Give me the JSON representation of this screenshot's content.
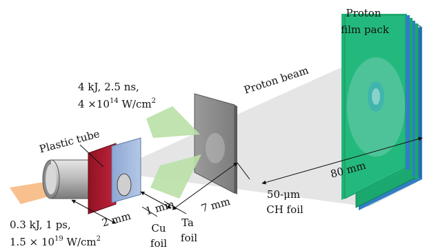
{
  "labels": {
    "proton_film_pack_line1": "Proton",
    "proton_film_pack_line2": "film pack",
    "proton_beam": "Proton beam",
    "long_pulse_line1": "4 kJ, 2.5 ns,",
    "long_pulse_line2_prefix": "4 ×10",
    "long_pulse_line2_exp": "14",
    "long_pulse_line2_unit": " W/cm",
    "long_pulse_line2_unit_exp": "2",
    "plastic_tube": "Plastic tube",
    "short_pulse_line1": "0.3 kJ, 1 ps,",
    "short_pulse_line2_prefix": "1.5 × 10",
    "short_pulse_line2_exp": "19",
    "short_pulse_line2_unit": " W/cm",
    "short_pulse_line2_unit_exp": "2",
    "dim_2mm": "2 mm",
    "dim_1mm": "1 mm",
    "dim_7mm": "7 mm",
    "dim_80mm": "80 mm",
    "cu_foil_line1": "Cu",
    "cu_foil_line2": "foil",
    "ta_foil_line1": "Ta",
    "ta_foil_line2": "foil",
    "ch_foil_line1": "50-μm",
    "ch_foil_line2": "CH foil"
  },
  "colors": {
    "film_green": "#1aa86e",
    "film_blue": "#2f7fc4",
    "proton_cone": "#d9d9d9",
    "short_pulse_beam": "#f7c08e",
    "long_pulse_beam": "#b9e0a6",
    "cu_foil": "#b01a2c",
    "ta_foil": "#9fb6dc",
    "ch_foil": "#8a8a8a",
    "tube": "#9a9a9a"
  }
}
